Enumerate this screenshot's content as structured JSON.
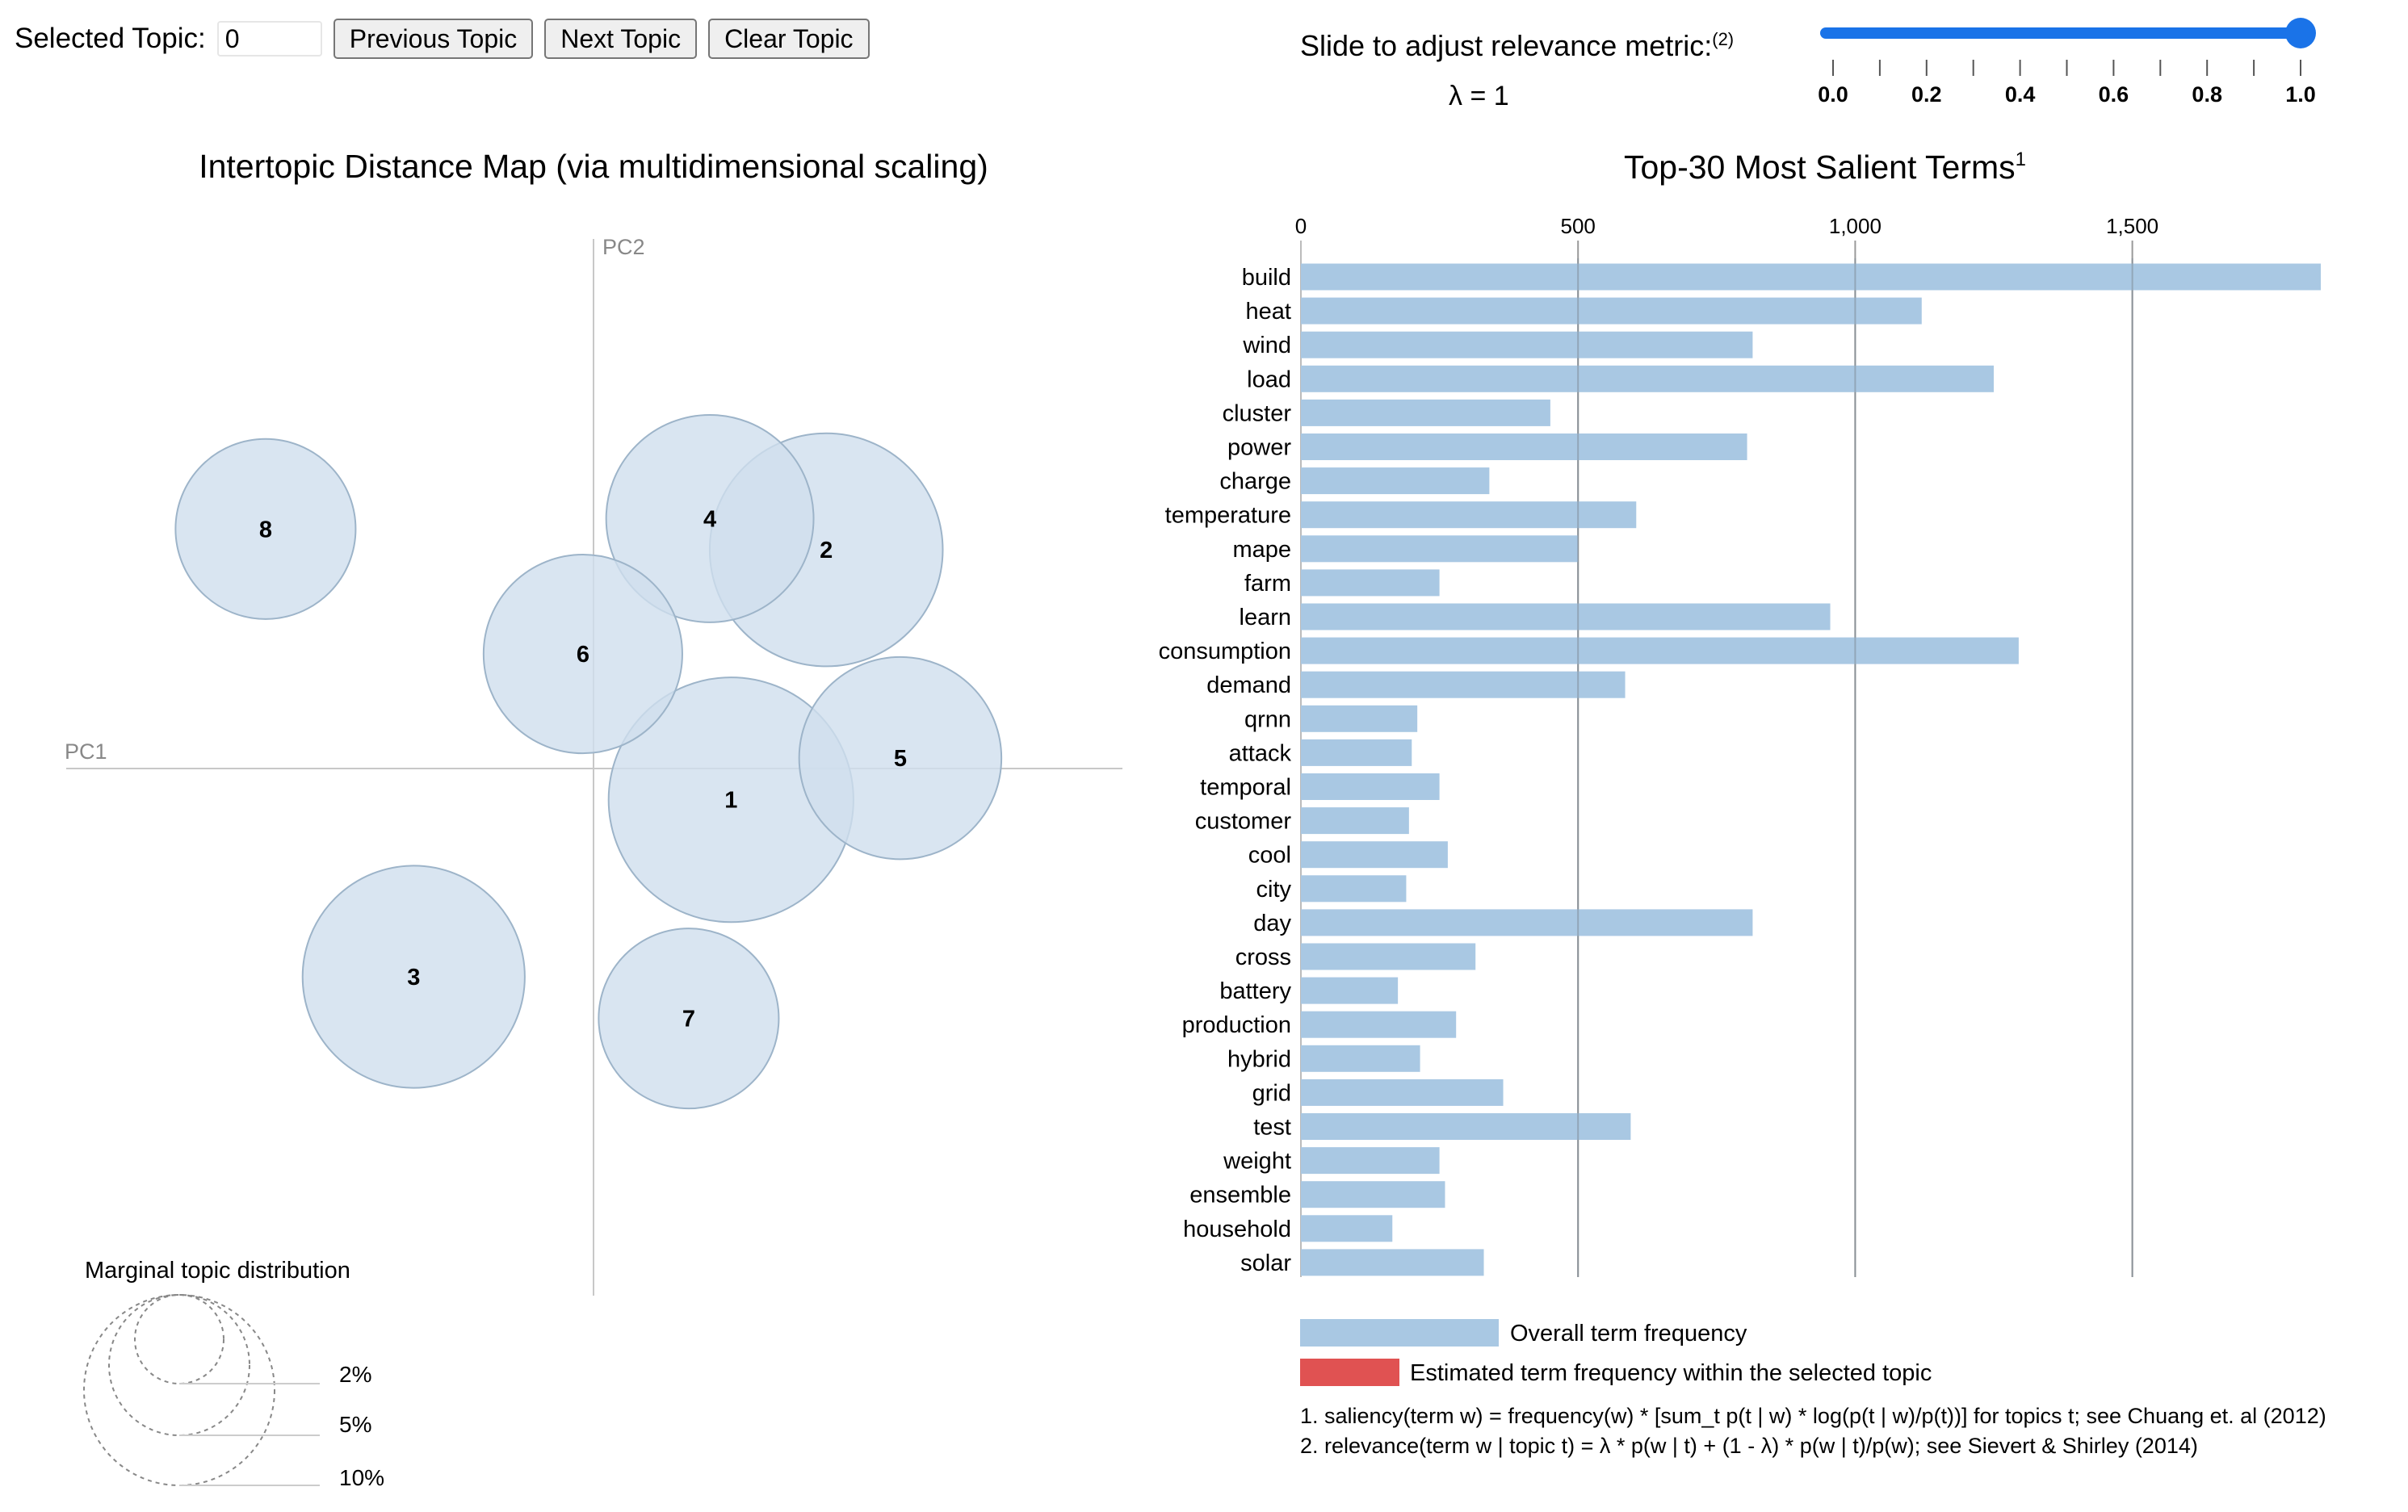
{
  "controls": {
    "selected_topic_label": "Selected Topic:",
    "selected_topic_value": "0",
    "prev_label": "Previous Topic",
    "next_label": "Next Topic",
    "clear_label": "Clear Topic"
  },
  "slider": {
    "title": "Slide to adjust relevance metric:",
    "title_sup": "(2)",
    "lambda_label": "λ = 1",
    "value": 1.0,
    "ticks": [
      "0.0",
      "0.2",
      "0.4",
      "0.6",
      "0.8",
      "1.0"
    ]
  },
  "left": {
    "title": "Intertopic Distance Map (via multidimensional scaling)",
    "pc1": "PC1",
    "pc2": "PC2",
    "marginal_title": "Marginal topic distribution",
    "marginal_labels": [
      "2%",
      "5%",
      "10%"
    ]
  },
  "right": {
    "title": "Top-30 Most Salient Terms",
    "title_sup": "1",
    "legend_overall": "Overall term frequency",
    "legend_selected": "Estimated term frequency within the selected topic",
    "footnote1": "1. saliency(term w) = frequency(w) * [sum_t p(t | w) * log(p(t | w)/p(t))] for topics t; see Chuang et. al (2012)",
    "footnote2": "2. relevance(term w | topic t) = λ * p(w | t) + (1 - λ) * p(w | t)/p(w); see Sievert & Shirley (2014)"
  },
  "colors": {
    "bar": "#a9c8e3",
    "bubble_fill": "#cfdfee",
    "bubble_stroke": "#9db4c9",
    "selected": "#e05252",
    "slider": "#1a73e8"
  },
  "chart_data": [
    {
      "type": "scatter",
      "title": "Intertopic Distance Map (via multidimensional scaling)",
      "xlabel": "PC1",
      "ylabel": "PC2",
      "note": "topic centers in PC units; size = marginal topic distribution (%)",
      "topics": [
        {
          "id": "1",
          "pc1": 0.13,
          "pc2": -0.03,
          "size": 8.5
        },
        {
          "id": "2",
          "pc1": 0.22,
          "pc2": 0.21,
          "size": 7.7
        },
        {
          "id": "3",
          "pc1": -0.17,
          "pc2": -0.2,
          "size": 7.0
        },
        {
          "id": "4",
          "pc1": 0.11,
          "pc2": 0.24,
          "size": 6.1
        },
        {
          "id": "5",
          "pc1": 0.29,
          "pc2": 0.01,
          "size": 5.8
        },
        {
          "id": "6",
          "pc1": -0.01,
          "pc2": 0.11,
          "size": 5.6
        },
        {
          "id": "7",
          "pc1": 0.09,
          "pc2": -0.24,
          "size": 4.6
        },
        {
          "id": "8",
          "pc1": -0.31,
          "pc2": 0.23,
          "size": 4.6
        }
      ]
    },
    {
      "type": "bar",
      "orientation": "horizontal",
      "title": "Top-30 Most Salient Terms",
      "categories": [
        "build",
        "heat",
        "wind",
        "load",
        "cluster",
        "power",
        "charge",
        "temperature",
        "mape",
        "farm",
        "learn",
        "consumption",
        "demand",
        "qrnn",
        "attack",
        "temporal",
        "customer",
        "cool",
        "city",
        "day",
        "cross",
        "battery",
        "production",
        "hybrid",
        "grid",
        "test",
        "weight",
        "ensemble",
        "household",
        "solar"
      ],
      "values": [
        1840,
        1120,
        815,
        1250,
        450,
        805,
        340,
        605,
        500,
        250,
        955,
        1295,
        585,
        210,
        200,
        250,
        195,
        265,
        190,
        815,
        315,
        175,
        280,
        215,
        365,
        595,
        250,
        260,
        165,
        330
      ],
      "xticks": [
        0,
        500,
        1000,
        1500
      ],
      "xtick_labels": [
        "0",
        "500",
        "1,000",
        "1,500"
      ],
      "xlim": [
        0,
        1840
      ]
    }
  ]
}
